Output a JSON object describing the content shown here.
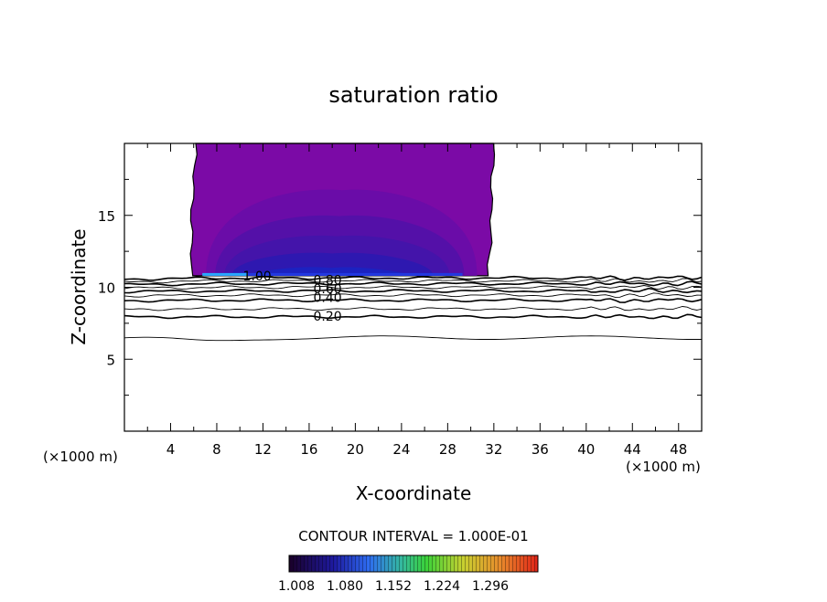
{
  "chart_data": {
    "type": "contour",
    "title": "saturation ratio",
    "xlabel": "X-coordinate",
    "ylabel": "Z-coordinate",
    "x_unit": "(×1000 m)",
    "z_unit": "(×1000 m)",
    "xlim": [
      0,
      50
    ],
    "ylim": [
      0,
      20
    ],
    "x_ticks": [
      4,
      8,
      12,
      16,
      20,
      24,
      28,
      32,
      36,
      40,
      44,
      48
    ],
    "y_ticks": [
      5,
      10,
      15
    ],
    "contour_interval_text": "CONTOUR INTERVAL = 1.000E-01",
    "contour_labels": [
      {
        "text": "1.00",
        "x": 11.5,
        "z": 10.8
      },
      {
        "text": "0.80",
        "x": 17.6,
        "z": 10.5
      },
      {
        "text": "0.60",
        "x": 17.6,
        "z": 9.9
      },
      {
        "text": "0.40",
        "x": 17.6,
        "z": 9.3
      },
      {
        "text": "0.20",
        "x": 17.6,
        "z": 8.0
      }
    ],
    "contours": [
      {
        "level": 0.1,
        "z_base": 6.5
      },
      {
        "level": 0.2,
        "z_base": 7.95
      },
      {
        "level": 0.3,
        "z_base": 8.5
      },
      {
        "level": 0.4,
        "z_base": 9.1
      },
      {
        "level": 0.5,
        "z_base": 9.45
      },
      {
        "level": 0.6,
        "z_base": 9.75
      },
      {
        "level": 0.7,
        "z_base": 10.0
      },
      {
        "level": 0.8,
        "z_base": 10.25
      },
      {
        "level": 0.9,
        "z_base": 10.45
      },
      {
        "level": 1.0,
        "z_base": 10.65
      }
    ],
    "supersaturated_region": {
      "x_range": [
        5.8,
        31.5
      ],
      "z_range": [
        10.8,
        20
      ]
    },
    "colorbar": {
      "tick_labels": [
        "1.008",
        "1.080",
        "1.152",
        "1.224",
        "1.296"
      ],
      "colors": [
        "#200030",
        "#1a1a9c",
        "#2c7cff",
        "#38d838",
        "#d8d830",
        "#e8301c"
      ]
    }
  }
}
